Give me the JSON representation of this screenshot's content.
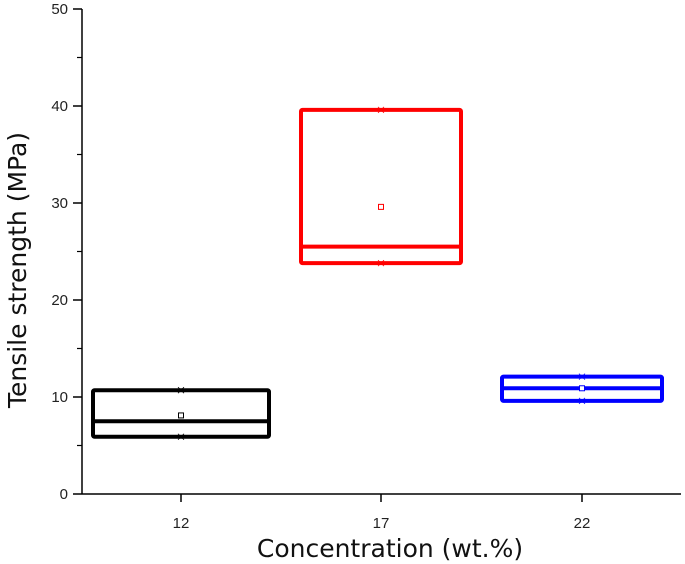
{
  "chart_data": {
    "type": "box",
    "title": "",
    "xlabel": "Concentration (wt.%)",
    "ylabel": "Tensile strength (MPa)",
    "categories": [
      "12",
      "17",
      "22"
    ],
    "ylim": [
      0,
      50
    ],
    "yticks": [
      0,
      10,
      20,
      30,
      40,
      50
    ],
    "grid": false,
    "legend": null,
    "series": [
      {
        "name": "12",
        "color": "#000000",
        "q1": 5.9,
        "median": 7.5,
        "q3": 10.7,
        "mean": 8.1,
        "min": 5.9,
        "max": 10.7
      },
      {
        "name": "17",
        "color": "#ff0000",
        "q1": 23.8,
        "median": 25.5,
        "q3": 39.6,
        "mean": 29.6,
        "min": 23.8,
        "max": 39.6
      },
      {
        "name": "22",
        "color": "#0000ff",
        "q1": 9.6,
        "median": 10.9,
        "q3": 12.1,
        "mean": 10.9,
        "min": 9.6,
        "max": 12.1
      }
    ]
  }
}
